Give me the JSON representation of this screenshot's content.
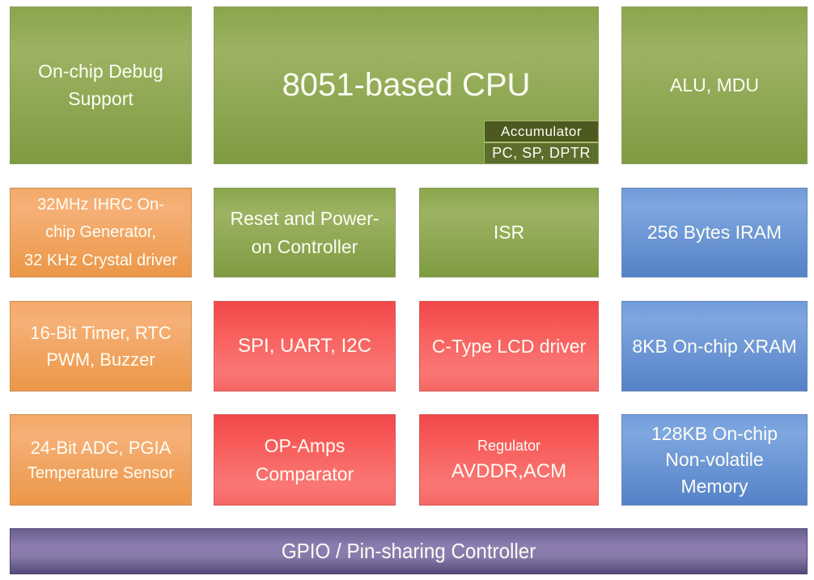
{
  "colors": {
    "green": "#8aa64c",
    "orange": "#f0a258",
    "red": "#f5605e",
    "blue": "#6293d3",
    "purple": "#7d6fa2",
    "register_dark": "#4c591f",
    "register_mid": "#5d6d2c",
    "text": "#fdfdf4",
    "background": "#ffffff"
  },
  "blocks": {
    "debug_support": {
      "label": "On-chip Debug\nSupport"
    },
    "cpu": {
      "label": "8051-based CPU"
    },
    "accumulator": {
      "label": "Accumulator"
    },
    "registers": {
      "label": "PC, SP, DPTR"
    },
    "alu_mdu": {
      "label": "ALU, MDU"
    },
    "ihrc": {
      "label": "32MHz IHRC On-\nchip Generator,\n32 KHz Crystal driver"
    },
    "reset_power": {
      "label": "Reset and Power-\non Controller"
    },
    "isr": {
      "label": "ISR"
    },
    "iram": {
      "label": "256 Bytes IRAM"
    },
    "timer": {
      "label": "16-Bit Timer, RTC\nPWM, Buzzer"
    },
    "serial": {
      "label": "SPI, UART, I2C"
    },
    "lcd": {
      "label": "C-Type LCD driver"
    },
    "xram": {
      "label": "8KB On-chip XRAM"
    },
    "adc": {
      "line1": "24-Bit ADC, PGIA",
      "line2": "Temperature Sensor"
    },
    "opamps": {
      "label": "OP-Amps\nComparator"
    },
    "regulator": {
      "line1": "Regulator",
      "line2": "AVDDR,ACM"
    },
    "nvm": {
      "label": "128KB On-chip\nNon-volatile\nMemory"
    },
    "gpio": {
      "label": "GPIO / Pin-sharing Controller"
    }
  }
}
